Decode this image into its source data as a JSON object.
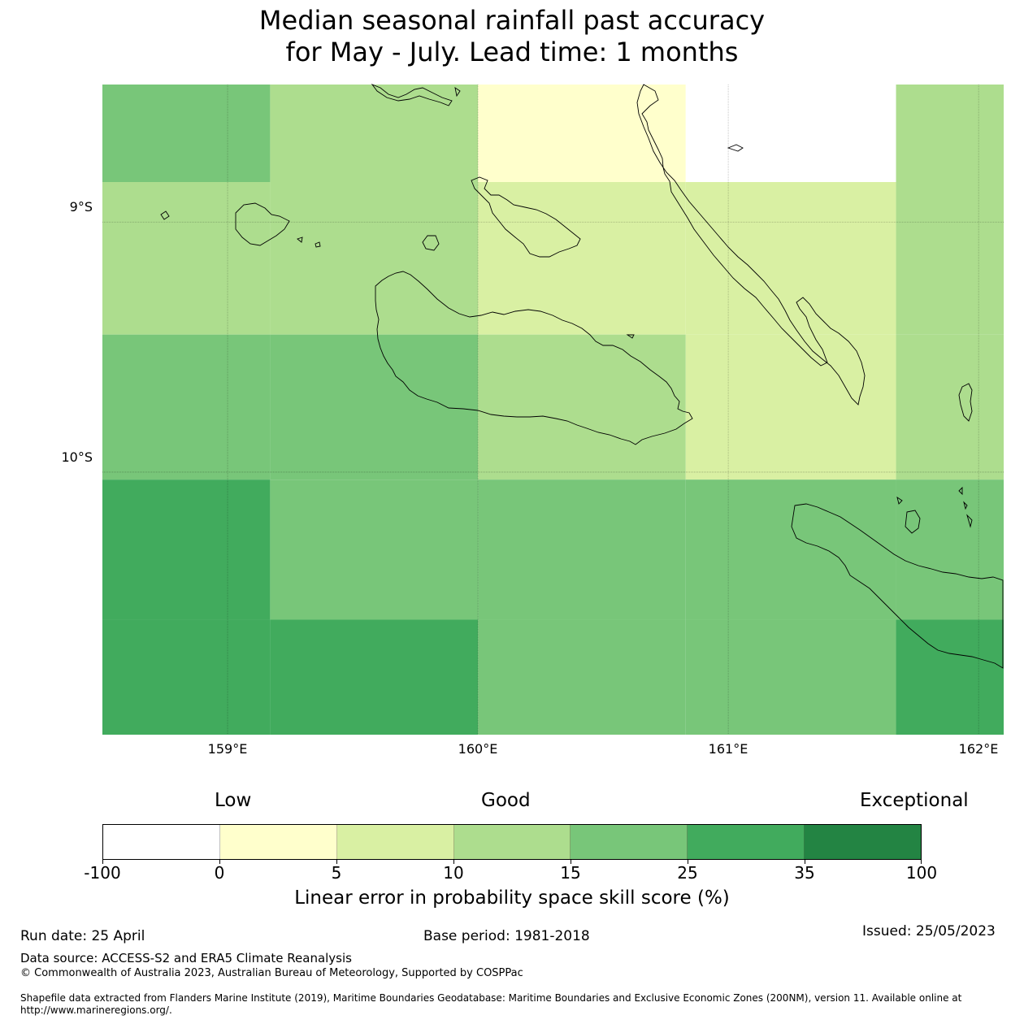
{
  "title": {
    "line1": "Median seasonal rainfall past accuracy",
    "line2": "for May - July. Lead time: 1 months"
  },
  "map": {
    "lat_labels": [
      "9°S",
      "10°S"
    ],
    "lon_labels": [
      "159°E",
      "160°E",
      "161°E",
      "162°E"
    ],
    "lon_range": [
      158.5,
      162.1
    ],
    "lat_range": [
      -11.05,
      -8.45
    ],
    "cell_grid": {
      "lon_edges": [
        158.5,
        159.17,
        160.0,
        160.83,
        161.67,
        162.1
      ],
      "lat_edges": [
        -8.45,
        -8.84,
        -9.45,
        -10.03,
        -10.59,
        -11.05
      ],
      "category_index_rows": [
        [
          4,
          3,
          1,
          0,
          3
        ],
        [
          3,
          3,
          2,
          2,
          3
        ],
        [
          4,
          4,
          3,
          2,
          3
        ],
        [
          5,
          4,
          4,
          4,
          4
        ],
        [
          5,
          5,
          4,
          4,
          5
        ]
      ]
    }
  },
  "colorbar": {
    "category_labels": {
      "low": "Low",
      "good": "Good",
      "exceptional": "Exceptional"
    },
    "ticks": [
      "-100",
      "0",
      "5",
      "10",
      "15",
      "25",
      "35",
      "100"
    ],
    "colors": [
      "#ffffff",
      "#ffffcc",
      "#d9f0a3",
      "#addd8e",
      "#78c679",
      "#41ab5d",
      "#238443"
    ],
    "xlabel": "Linear error in probability space skill score (%)"
  },
  "footer": {
    "run_date": "Run date: 25 April",
    "base_period": "Base period: 1981-2018",
    "issued": "Issued: 25/05/2023",
    "data_source": "Data source: ACCESS-S2 and ERA5 Climate Reanalysis",
    "copyright": "© Commonwealth of Australia 2023, Australian Bureau of Meteorology, Supported by COSPPac",
    "shapefile": "Shapefile data extracted from Flanders Marine Institute (2019), Maritime Boundaries Geodatabase: Maritime Boundaries and Exclusive Economic Zones (200NM), version 11. Available online at http://www.marineregions.org/."
  }
}
